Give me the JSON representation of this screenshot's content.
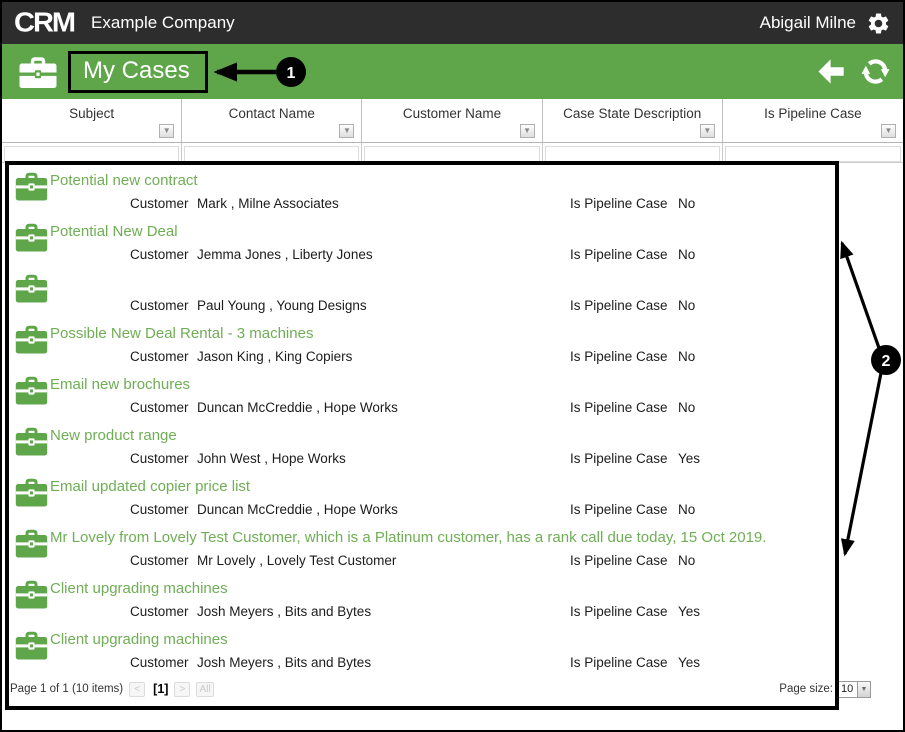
{
  "titlebar": {
    "logo": "CRM",
    "company": "Example Company",
    "user": "Abigail Milne"
  },
  "toolbar": {
    "title": "My Cases"
  },
  "table": {
    "columns": [
      "Subject",
      "Contact Name",
      "Customer Name",
      "Case State Description",
      "Is Pipeline Case"
    ]
  },
  "row_labels": {
    "customer": "Customer",
    "pipeline": "Is Pipeline Case"
  },
  "cases": [
    {
      "subject": "Potential new contract",
      "customer": "Mark , Milne Associates",
      "pipeline": "No"
    },
    {
      "subject": "Potential New Deal",
      "customer": "Jemma Jones , Liberty Jones",
      "pipeline": "No"
    },
    {
      "subject": "",
      "customer": "Paul Young , Young Designs",
      "pipeline": "No"
    },
    {
      "subject": "Possible New Deal Rental - 3 machines",
      "customer": "Jason King , King Copiers",
      "pipeline": "No"
    },
    {
      "subject": "Email new brochures",
      "customer": "Duncan McCreddie , Hope Works",
      "pipeline": "No"
    },
    {
      "subject": "New product range",
      "customer": "John West , Hope Works",
      "pipeline": "Yes"
    },
    {
      "subject": "Email updated copier price list",
      "customer": "Duncan McCreddie , Hope Works",
      "pipeline": "No"
    },
    {
      "subject": "Mr Lovely from Lovely Test Customer, which is a Platinum customer, has a rank call due today, 15 Oct 2019.",
      "customer": "Mr Lovely , Lovely Test Customer",
      "pipeline": "No"
    },
    {
      "subject": "Client upgrading machines",
      "customer": "Josh Meyers , Bits and Bytes",
      "pipeline": "Yes"
    },
    {
      "subject": "Client upgrading machines",
      "customer": "Josh Meyers , Bits and Bytes",
      "pipeline": "Yes"
    }
  ],
  "pagination": {
    "summary": "Page 1 of 1 (10 items)",
    "prev": "<",
    "current": "[1]",
    "next": ">",
    "all": "All",
    "page_size_label": "Page size:",
    "page_size": "10"
  },
  "annotations": {
    "badge1": "1",
    "badge2": "2"
  },
  "colors": {
    "green": "#5FA64A",
    "link_green": "#6FAE55",
    "topbar": "#2D2D2D"
  }
}
